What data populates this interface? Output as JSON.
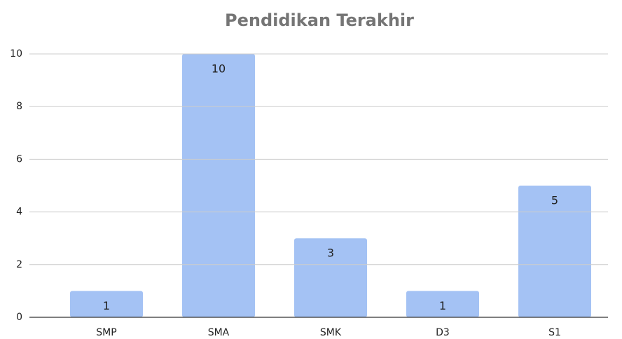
{
  "chart_data": {
    "type": "bar",
    "title": "Pendidikan Terakhir",
    "categories": [
      "SMP",
      "SMA",
      "SMK",
      "D3",
      "S1"
    ],
    "values": [
      1,
      10,
      3,
      1,
      5
    ],
    "color": "#a4c2f4",
    "ylim": [
      0,
      10
    ],
    "yticks": [
      0,
      2,
      4,
      6,
      8,
      10
    ],
    "grid": true
  }
}
